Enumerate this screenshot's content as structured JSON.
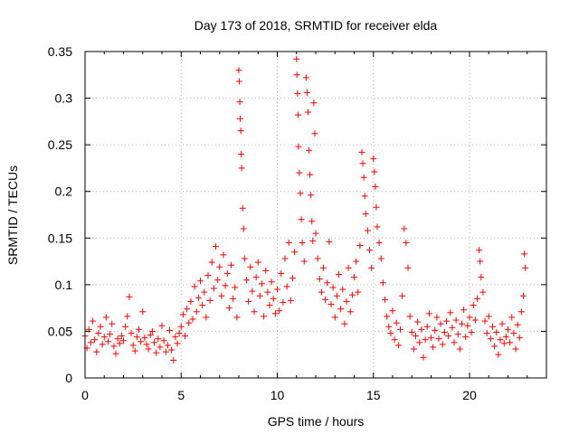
{
  "chart_data": {
    "type": "scatter",
    "title": "Day 173 of 2018, SRMTID for receiver elda",
    "xlabel": "GPS time / hours",
    "ylabel": "SRMTID / TECUs",
    "xlim": [
      0,
      24
    ],
    "ylim": [
      0,
      0.35
    ],
    "x_ticks": [
      0,
      5,
      10,
      15,
      20
    ],
    "x_tick_labels": [
      "0",
      "5",
      "10",
      "15",
      "20"
    ],
    "y_ticks": [
      0,
      0.05,
      0.1,
      0.15,
      0.2,
      0.25,
      0.3,
      0.35
    ],
    "y_tick_labels": [
      "0",
      "0.05",
      "0.1",
      "0.15",
      "0.2",
      "0.25",
      "0.3",
      "0.35"
    ],
    "grid": true,
    "marker": "+",
    "color": "#ff0000",
    "series": [
      {
        "name": "SRMTID",
        "points": [
          [
            0.0,
            0.045
          ],
          [
            0.1,
            0.032
          ],
          [
            0.2,
            0.052
          ],
          [
            0.3,
            0.038
          ],
          [
            0.4,
            0.061
          ],
          [
            0.5,
            0.041
          ],
          [
            0.6,
            0.028
          ],
          [
            0.7,
            0.048
          ],
          [
            0.8,
            0.055
          ],
          [
            0.9,
            0.036
          ],
          [
            1.0,
            0.044
          ],
          [
            1.1,
            0.065
          ],
          [
            1.2,
            0.039
          ],
          [
            1.3,
            0.047
          ],
          [
            1.4,
            0.058
          ],
          [
            1.5,
            0.034
          ],
          [
            1.6,
            0.026
          ],
          [
            1.7,
            0.042
          ],
          [
            1.8,
            0.037
          ],
          [
            1.9,
            0.045
          ],
          [
            2.0,
            0.04
          ],
          [
            2.1,
            0.055
          ],
          [
            2.2,
            0.066
          ],
          [
            2.3,
            0.087
          ],
          [
            2.4,
            0.048
          ],
          [
            2.5,
            0.035
          ],
          [
            2.6,
            0.029
          ],
          [
            2.7,
            0.044
          ],
          [
            2.8,
            0.052
          ],
          [
            2.9,
            0.039
          ],
          [
            3.0,
            0.071
          ],
          [
            3.1,
            0.043
          ],
          [
            3.2,
            0.036
          ],
          [
            3.3,
            0.031
          ],
          [
            3.4,
            0.046
          ],
          [
            3.5,
            0.05
          ],
          [
            3.6,
            0.038
          ],
          [
            3.7,
            0.027
          ],
          [
            3.8,
            0.042
          ],
          [
            3.9,
            0.033
          ],
          [
            4.0,
            0.056
          ],
          [
            4.1,
            0.04
          ],
          [
            4.2,
            0.028
          ],
          [
            4.3,
            0.035
          ],
          [
            4.4,
            0.051
          ],
          [
            4.5,
            0.03
          ],
          [
            4.6,
            0.019
          ],
          [
            4.7,
            0.044
          ],
          [
            4.8,
            0.037
          ],
          [
            4.9,
            0.048
          ],
          [
            5.0,
            0.055
          ],
          [
            5.1,
            0.068
          ],
          [
            5.2,
            0.045
          ],
          [
            5.3,
            0.074
          ],
          [
            5.4,
            0.059
          ],
          [
            5.5,
            0.082
          ],
          [
            5.6,
            0.063
          ],
          [
            5.7,
            0.098
          ],
          [
            5.8,
            0.071
          ],
          [
            5.9,
            0.086
          ],
          [
            6.0,
            0.104
          ],
          [
            6.1,
            0.078
          ],
          [
            6.2,
            0.092
          ],
          [
            6.3,
            0.065
          ],
          [
            6.4,
            0.11
          ],
          [
            6.5,
            0.083
          ],
          [
            6.6,
            0.124
          ],
          [
            6.7,
            0.096
          ],
          [
            6.8,
            0.141
          ],
          [
            6.9,
            0.105
          ],
          [
            7.0,
            0.119
          ],
          [
            7.1,
            0.088
          ],
          [
            7.2,
            0.132
          ],
          [
            7.3,
            0.099
          ],
          [
            7.4,
            0.112
          ],
          [
            7.5,
            0.075
          ],
          [
            7.6,
            0.121
          ],
          [
            7.7,
            0.085
          ],
          [
            7.8,
            0.097
          ],
          [
            7.9,
            0.065
          ],
          [
            8.0,
            0.33
          ],
          [
            8.02,
            0.318
          ],
          [
            8.05,
            0.296
          ],
          [
            8.07,
            0.278
          ],
          [
            8.1,
            0.265
          ],
          [
            8.12,
            0.24
          ],
          [
            8.15,
            0.225
          ],
          [
            8.2,
            0.182
          ],
          [
            8.25,
            0.16
          ],
          [
            8.3,
            0.128
          ],
          [
            8.4,
            0.105
          ],
          [
            8.5,
            0.082
          ],
          [
            8.6,
            0.119
          ],
          [
            8.7,
            0.093
          ],
          [
            8.8,
            0.071
          ],
          [
            8.9,
            0.108
          ],
          [
            9.0,
            0.124
          ],
          [
            9.1,
            0.088
          ],
          [
            9.2,
            0.101
          ],
          [
            9.3,
            0.066
          ],
          [
            9.4,
            0.115
          ],
          [
            9.5,
            0.092
          ],
          [
            9.6,
            0.078
          ],
          [
            9.7,
            0.103
          ],
          [
            9.8,
            0.085
          ],
          [
            9.9,
            0.069
          ],
          [
            10.0,
            0.095
          ],
          [
            10.1,
            0.072
          ],
          [
            10.2,
            0.112
          ],
          [
            10.3,
            0.081
          ],
          [
            10.4,
            0.128
          ],
          [
            10.5,
            0.098
          ],
          [
            10.6,
            0.145
          ],
          [
            10.7,
            0.083
          ],
          [
            10.8,
            0.107
          ],
          [
            10.9,
            0.135
          ],
          [
            11.0,
            0.342
          ],
          [
            11.02,
            0.325
          ],
          [
            11.05,
            0.305
          ],
          [
            11.08,
            0.282
          ],
          [
            11.1,
            0.248
          ],
          [
            11.15,
            0.22
          ],
          [
            11.2,
            0.198
          ],
          [
            11.25,
            0.17
          ],
          [
            11.3,
            0.145
          ],
          [
            11.4,
            0.125
          ],
          [
            11.5,
            0.322
          ],
          [
            11.55,
            0.306
          ],
          [
            11.6,
            0.285
          ],
          [
            11.65,
            0.244
          ],
          [
            11.7,
            0.218
          ],
          [
            11.75,
            0.196
          ],
          [
            11.8,
            0.168
          ],
          [
            11.85,
            0.147
          ],
          [
            11.9,
            0.295
          ],
          [
            11.95,
            0.262
          ],
          [
            12.0,
            0.155
          ],
          [
            12.1,
            0.128
          ],
          [
            12.2,
            0.106
          ],
          [
            12.3,
            0.092
          ],
          [
            12.4,
            0.118
          ],
          [
            12.5,
            0.084
          ],
          [
            12.6,
            0.102
          ],
          [
            12.7,
            0.146
          ],
          [
            12.8,
            0.079
          ],
          [
            12.9,
            0.097
          ],
          [
            13.0,
            0.065
          ],
          [
            13.1,
            0.088
          ],
          [
            13.2,
            0.111
          ],
          [
            13.3,
            0.074
          ],
          [
            13.4,
            0.095
          ],
          [
            13.5,
            0.058
          ],
          [
            13.6,
            0.082
          ],
          [
            13.7,
            0.118
          ],
          [
            13.8,
            0.071
          ],
          [
            13.9,
            0.089
          ],
          [
            14.0,
            0.108
          ],
          [
            14.1,
            0.125
          ],
          [
            14.2,
            0.092
          ],
          [
            14.3,
            0.142
          ],
          [
            14.4,
            0.242
          ],
          [
            14.45,
            0.23
          ],
          [
            14.5,
            0.215
          ],
          [
            14.55,
            0.195
          ],
          [
            14.6,
            0.176
          ],
          [
            14.7,
            0.158
          ],
          [
            14.8,
            0.137
          ],
          [
            14.9,
            0.118
          ],
          [
            15.0,
            0.235
          ],
          [
            15.05,
            0.221
          ],
          [
            15.1,
            0.205
          ],
          [
            15.15,
            0.183
          ],
          [
            15.2,
            0.162
          ],
          [
            15.3,
            0.145
          ],
          [
            15.4,
            0.128
          ],
          [
            15.5,
            0.102
          ],
          [
            15.6,
            0.084
          ],
          [
            15.7,
            0.066
          ],
          [
            15.8,
            0.055
          ],
          [
            15.9,
            0.048
          ],
          [
            16.0,
            0.072
          ],
          [
            16.1,
            0.041
          ],
          [
            16.2,
            0.059
          ],
          [
            16.3,
            0.035
          ],
          [
            16.4,
            0.052
          ],
          [
            16.5,
            0.088
          ],
          [
            16.6,
            0.16
          ],
          [
            16.7,
            0.145
          ],
          [
            16.8,
            0.118
          ],
          [
            16.9,
            0.066
          ],
          [
            17.0,
            0.049
          ],
          [
            17.1,
            0.031
          ],
          [
            17.2,
            0.045
          ],
          [
            17.3,
            0.06
          ],
          [
            17.4,
            0.038
          ],
          [
            17.5,
            0.052
          ],
          [
            17.6,
            0.022
          ],
          [
            17.7,
            0.041
          ],
          [
            17.8,
            0.055
          ],
          [
            17.9,
            0.069
          ],
          [
            18.0,
            0.043
          ],
          [
            18.1,
            0.033
          ],
          [
            18.2,
            0.051
          ],
          [
            18.3,
            0.065
          ],
          [
            18.4,
            0.042
          ],
          [
            18.5,
            0.058
          ],
          [
            18.6,
            0.036
          ],
          [
            18.7,
            0.049
          ],
          [
            18.8,
            0.061
          ],
          [
            18.9,
            0.045
          ],
          [
            19.0,
            0.07
          ],
          [
            19.1,
            0.054
          ],
          [
            19.2,
            0.038
          ],
          [
            19.3,
            0.062
          ],
          [
            19.4,
            0.047
          ],
          [
            19.5,
            0.031
          ],
          [
            19.6,
            0.058
          ],
          [
            19.7,
            0.073
          ],
          [
            19.8,
            0.044
          ],
          [
            19.9,
            0.056
          ],
          [
            20.0,
            0.065
          ],
          [
            20.1,
            0.049
          ],
          [
            20.2,
            0.078
          ],
          [
            20.3,
            0.062
          ],
          [
            20.4,
            0.085
          ],
          [
            20.5,
            0.137
          ],
          [
            20.55,
            0.125
          ],
          [
            20.6,
            0.108
          ],
          [
            20.7,
            0.092
          ],
          [
            20.8,
            0.061
          ],
          [
            20.9,
            0.048
          ],
          [
            21.0,
            0.066
          ],
          [
            21.1,
            0.042
          ],
          [
            21.2,
            0.055
          ],
          [
            21.3,
            0.034
          ],
          [
            21.4,
            0.049
          ],
          [
            21.5,
            0.025
          ],
          [
            21.6,
            0.041
          ],
          [
            21.7,
            0.058
          ],
          [
            21.8,
            0.037
          ],
          [
            21.9,
            0.044
          ],
          [
            22.0,
            0.052
          ],
          [
            22.1,
            0.038
          ],
          [
            22.2,
            0.065
          ],
          [
            22.3,
            0.048
          ],
          [
            22.4,
            0.031
          ],
          [
            22.5,
            0.057
          ],
          [
            22.6,
            0.043
          ],
          [
            22.7,
            0.071
          ],
          [
            22.8,
            0.088
          ],
          [
            22.85,
            0.133
          ],
          [
            22.9,
            0.118
          ]
        ]
      }
    ]
  }
}
